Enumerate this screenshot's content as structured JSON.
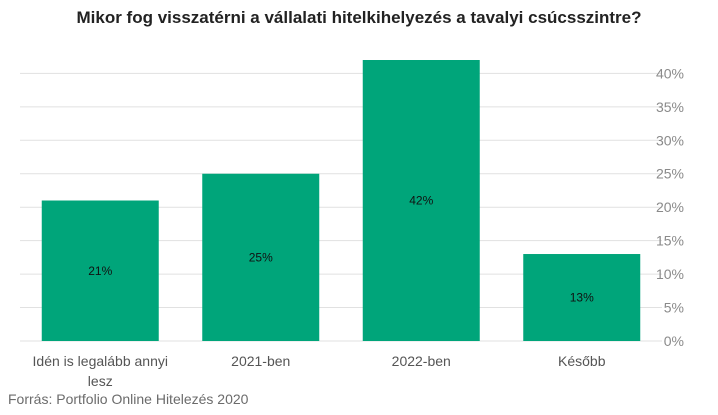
{
  "colors": {
    "bar": "#00a57a",
    "grid": "#e1e1e1",
    "axis_text": "#8a8a8a",
    "category_text": "#555555",
    "label_text": "#111111"
  },
  "source": "Forrás: Portfolio Online Hitelezés 2020",
  "chart_data": {
    "type": "bar",
    "title": "Mikor fog visszatérni a vállalati hitelkihelyezés a tavalyi csúcsszintre?",
    "categories": [
      [
        "Idén is legalább annyi",
        "lesz"
      ],
      [
        "2021-ben"
      ],
      [
        "2022-ben"
      ],
      [
        "Később"
      ]
    ],
    "values": [
      21,
      25,
      42,
      13
    ],
    "data_labels": [
      "21%",
      "25%",
      "42%",
      "13%"
    ],
    "y_ticks": [
      "0%",
      "5%",
      "10%",
      "15%",
      "20%",
      "25%",
      "30%",
      "35%",
      "40%"
    ],
    "y_tick_values": [
      0,
      5,
      10,
      15,
      20,
      25,
      30,
      35,
      40
    ],
    "ylim": [
      0,
      42
    ],
    "y_axis_side": "right",
    "grid": true,
    "legend": "none"
  }
}
